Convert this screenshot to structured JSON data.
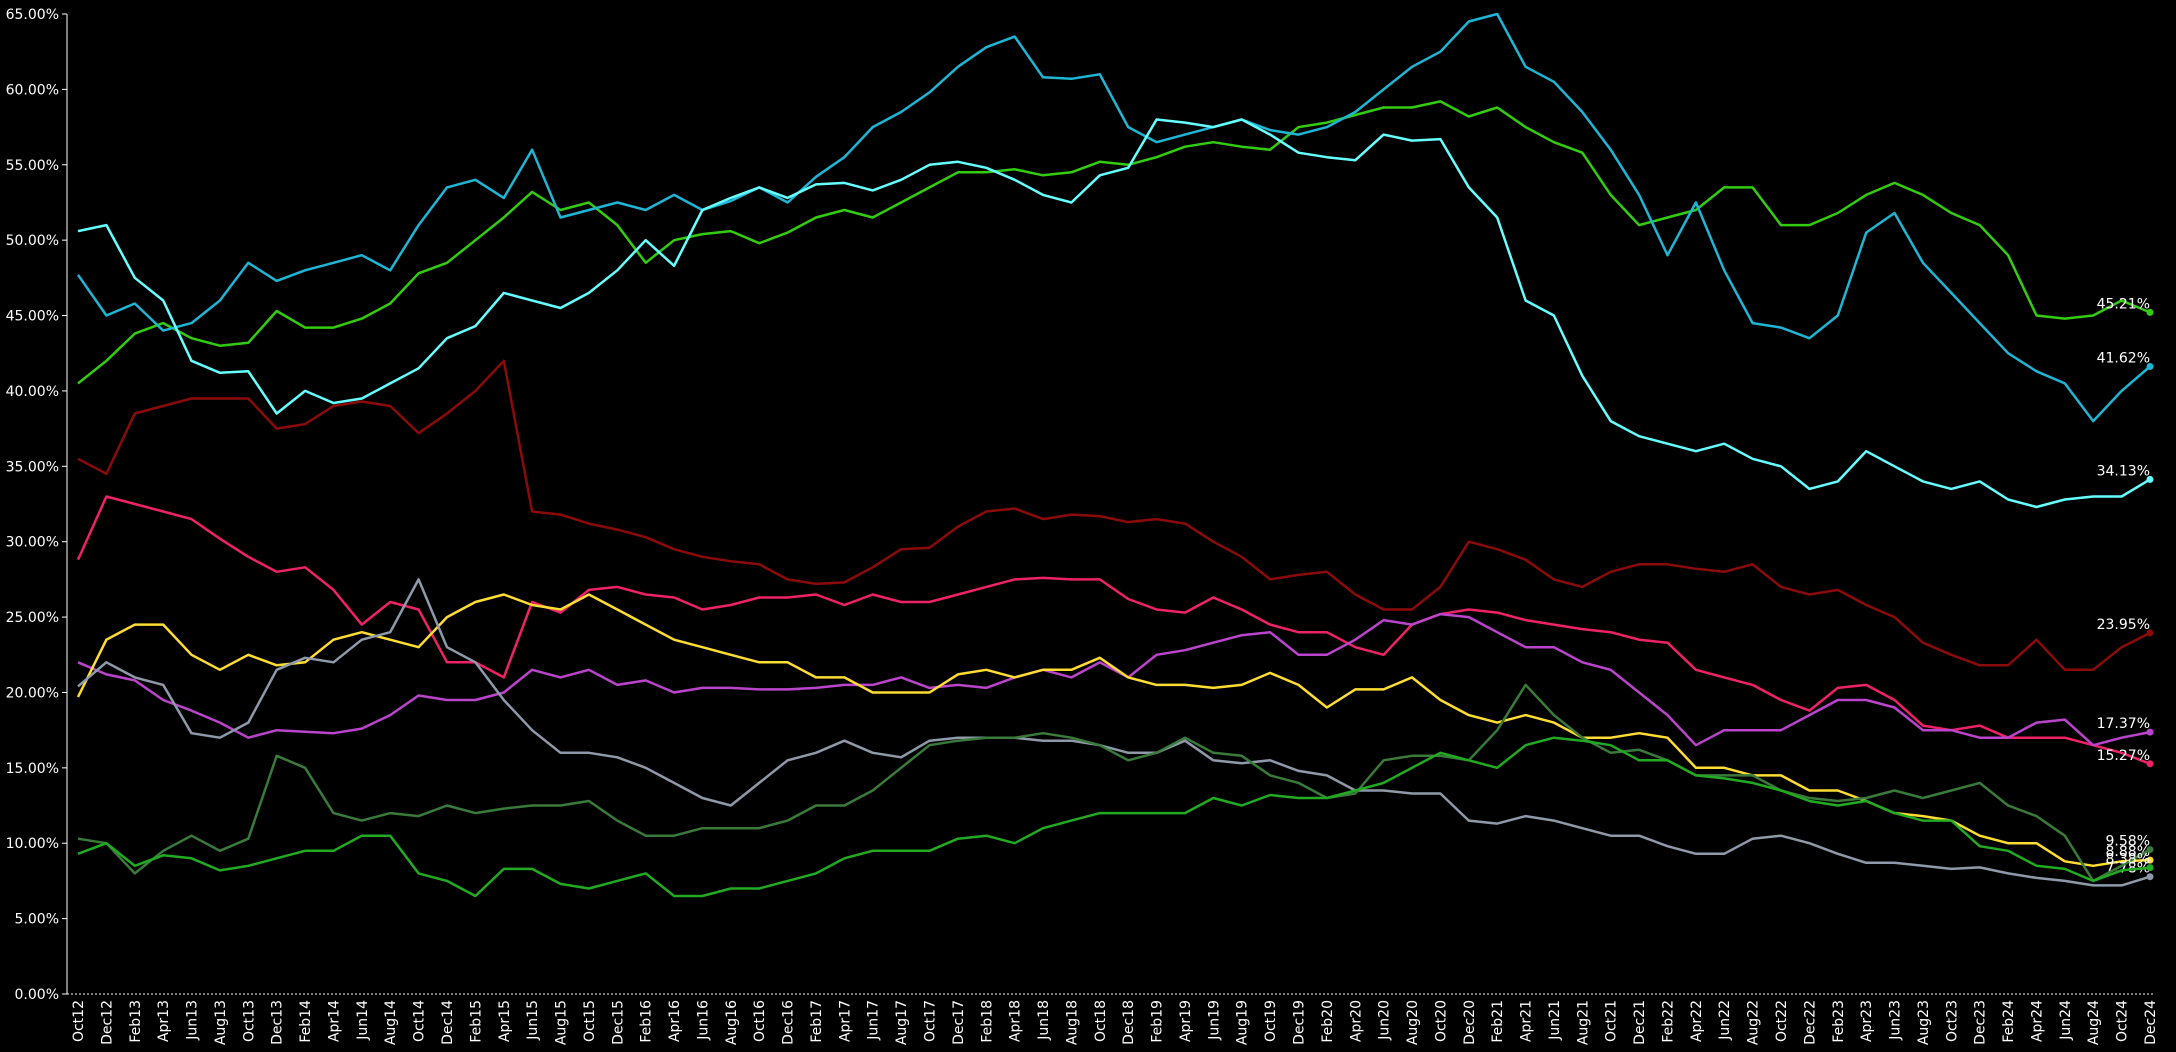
{
  "chart_data": {
    "type": "line",
    "categories": [
      "Oct12",
      "Dec12",
      "Feb13",
      "Apr13",
      "Jun13",
      "Aug13",
      "Oct13",
      "Dec13",
      "Feb14",
      "Apr14",
      "Jun14",
      "Aug14",
      "Oct14",
      "Dec14",
      "Feb15",
      "Apr15",
      "Jun15",
      "Aug15",
      "Oct15",
      "Dec15",
      "Feb16",
      "Apr16",
      "Jun16",
      "Aug16",
      "Oct16",
      "Dec16",
      "Feb17",
      "Apr17",
      "Jun17",
      "Aug17",
      "Oct17",
      "Dec17",
      "Feb18",
      "Apr18",
      "Jun18",
      "Aug18",
      "Oct18",
      "Dec18",
      "Feb19",
      "Apr19",
      "Jun19",
      "Aug19",
      "Oct19",
      "Dec19",
      "Feb20",
      "Apr20",
      "Jun20",
      "Aug20",
      "Oct20",
      "Dec20",
      "Feb21",
      "Apr21",
      "Jun21",
      "Aug21",
      "Oct21",
      "Dec21",
      "Feb22",
      "Apr22",
      "Jun22",
      "Aug22",
      "Oct22",
      "Dec22",
      "Feb23",
      "Apr23",
      "Jun23",
      "Aug23",
      "Oct23",
      "Dec23",
      "Feb24",
      "Apr24",
      "Jun24",
      "Aug24",
      "Oct24",
      "Dec24"
    ],
    "ylim": [
      0,
      65
    ],
    "yticks": [
      {
        "value": 0,
        "label": "0.00%"
      },
      {
        "value": 5,
        "label": "5.00%"
      },
      {
        "value": 10,
        "label": "10.00%"
      },
      {
        "value": 15,
        "label": "15.00%"
      },
      {
        "value": 20,
        "label": "20.00%"
      },
      {
        "value": 25,
        "label": "25.00%"
      },
      {
        "value": 30,
        "label": "30.00%"
      },
      {
        "value": 35,
        "label": "35.00%"
      },
      {
        "value": 40,
        "label": "40.00%"
      },
      {
        "value": 45,
        "label": "45.00%"
      },
      {
        "value": 50,
        "label": "50.00%"
      },
      {
        "value": 55,
        "label": "55.00%"
      },
      {
        "value": 60,
        "label": "60.00%"
      },
      {
        "value": 65,
        "label": "65.00%"
      }
    ],
    "series": [
      {
        "color": "#33cc11",
        "end_label": "45.21%",
        "values": [
          40.5,
          42,
          43.8,
          44.5,
          43.5,
          43,
          43.2,
          45.3,
          44.2,
          44.2,
          44.8,
          45.8,
          47.8,
          48.5,
          50,
          51.5,
          53.2,
          52,
          52.5,
          51,
          48.5,
          50,
          50.4,
          50.6,
          49.8,
          50.5,
          51.5,
          52,
          51.5,
          52.5,
          53.5,
          54.5,
          54.5,
          54.7,
          54.3,
          54.5,
          55.2,
          55,
          55.5,
          56.2,
          56.5,
          56.2,
          56,
          57.5,
          57.8,
          58.3,
          58.8,
          58.8,
          59.2,
          58.2,
          58.8,
          57.5,
          56.5,
          55.8,
          53,
          51,
          51.5,
          52,
          53.5,
          53.5,
          51,
          51,
          51.8,
          53,
          53.8,
          53,
          51.8,
          51,
          49,
          45,
          44.8,
          45,
          46,
          45.21
        ]
      },
      {
        "color": "#1fb5d5",
        "end_label": "41.62%",
        "values": [
          47.7,
          45,
          45.8,
          44,
          44.5,
          46,
          48.5,
          47.3,
          48,
          48.5,
          49,
          48,
          51,
          53.5,
          54,
          52.8,
          56,
          51.5,
          52,
          52.5,
          52,
          53,
          52,
          52.6,
          53.5,
          52.5,
          54.2,
          55.5,
          57.5,
          58.5,
          59.8,
          61.5,
          62.8,
          63.5,
          60.8,
          60.7,
          61,
          57.5,
          56.5,
          57,
          57.5,
          58,
          57.3,
          57,
          57.5,
          58.5,
          60,
          61.5,
          62.5,
          64.5,
          65,
          61.5,
          60.5,
          58.5,
          56,
          53,
          49,
          52.5,
          48,
          44.5,
          44.2,
          43.5,
          45,
          50.5,
          51.8,
          48.5,
          46.5,
          44.5,
          42.5,
          41.3,
          40.5,
          38,
          40,
          41.62
        ]
      },
      {
        "color": "#66ffff",
        "end_label": "34.13%",
        "values": [
          50.6,
          51,
          47.5,
          46,
          42,
          41.2,
          41.3,
          38.5,
          40,
          39.2,
          39.5,
          40.5,
          41.5,
          43.5,
          44.3,
          46.5,
          46,
          45.5,
          46.5,
          48,
          50,
          48.3,
          52,
          52.8,
          53.5,
          52.8,
          53.7,
          53.8,
          53.3,
          54,
          55,
          55.2,
          54.8,
          54,
          53,
          52.5,
          54.3,
          54.8,
          58,
          57.8,
          57.5,
          58,
          57,
          55.8,
          55.5,
          55.3,
          57,
          56.6,
          56.7,
          53.5,
          51.5,
          46,
          45,
          41,
          38,
          37,
          36.5,
          36,
          36.5,
          35.5,
          35,
          33.5,
          34,
          36,
          35,
          34,
          33.5,
          34,
          32.8,
          32.3,
          32.8,
          33,
          33,
          34.13
        ]
      },
      {
        "color": "#8b0a0a",
        "end_label": "23.95%",
        "values": [
          35.5,
          34.5,
          38.5,
          39,
          39.5,
          39.5,
          39.5,
          37.5,
          37.8,
          39,
          39.3,
          39,
          37.2,
          38.5,
          40,
          42,
          32,
          31.8,
          31.2,
          30.8,
          30.3,
          29.5,
          29,
          28.7,
          28.5,
          27.5,
          27.2,
          27.3,
          28.3,
          29.5,
          29.6,
          31,
          32,
          32.2,
          31.5,
          31.8,
          31.7,
          31.3,
          31.5,
          31.2,
          30,
          29,
          27.5,
          27.8,
          28,
          26.5,
          25.5,
          25.5,
          27,
          30,
          29.5,
          28.8,
          27.5,
          27,
          28,
          28.5,
          28.5,
          28.2,
          28,
          28.5,
          27,
          26.5,
          26.8,
          25.8,
          25,
          23.3,
          22.5,
          21.8,
          21.8,
          23.5,
          21.5,
          21.5,
          23,
          23.95
        ]
      },
      {
        "color": "#ee2266",
        "end_label": "15.27%",
        "values": [
          28.8,
          33,
          32.5,
          32,
          31.5,
          30.2,
          29,
          28,
          28.3,
          26.8,
          24.5,
          26,
          25.5,
          22,
          22,
          21,
          26,
          25.3,
          26.8,
          27,
          26.5,
          26.3,
          25.5,
          25.8,
          26.3,
          26.3,
          26.5,
          25.8,
          26.5,
          26,
          26,
          26.5,
          27,
          27.5,
          27.6,
          27.5,
          27.5,
          26.2,
          25.5,
          25.3,
          26.3,
          25.5,
          24.5,
          24,
          24,
          23,
          22.5,
          24.5,
          25.2,
          25.5,
          25.3,
          24.8,
          24.5,
          24.2,
          24,
          23.5,
          23.3,
          21.5,
          21,
          20.5,
          19.5,
          18.8,
          20.3,
          20.5,
          19.5,
          17.8,
          17.5,
          17.8,
          17,
          17,
          17,
          16.5,
          16,
          15.27
        ]
      },
      {
        "color": "#bb44cc",
        "end_label": "17.37%",
        "values": [
          22,
          21.2,
          20.8,
          19.5,
          18.8,
          18,
          17,
          17.5,
          17.4,
          17.3,
          17.6,
          18.5,
          19.8,
          19.5,
          19.5,
          20,
          21.5,
          21,
          21.5,
          20.5,
          20.8,
          20,
          20.3,
          20.3,
          20.2,
          20.2,
          20.3,
          20.5,
          20.5,
          21,
          20.3,
          20.5,
          20.3,
          21,
          21.5,
          21,
          22,
          21,
          22.5,
          22.8,
          23.3,
          23.8,
          24,
          22.5,
          22.5,
          23.5,
          24.8,
          24.5,
          25.2,
          25,
          24,
          23,
          23,
          22,
          21.5,
          20,
          18.5,
          16.5,
          17.5,
          17.5,
          17.5,
          18.5,
          19.5,
          19.5,
          19,
          17.5,
          17.5,
          17,
          17,
          18,
          18.2,
          16.5,
          17,
          17.37
        ]
      },
      {
        "color": "#ffdd33",
        "end_label": "8.88%",
        "values": [
          19.7,
          23.5,
          24.5,
          24.5,
          22.5,
          21.5,
          22.5,
          21.8,
          22,
          23.5,
          24,
          23.5,
          23,
          25,
          26,
          26.5,
          25.8,
          25.5,
          26.5,
          25.5,
          24.5,
          23.5,
          23,
          22.5,
          22,
          22,
          21,
          21,
          20,
          20,
          20,
          21.2,
          21.5,
          21,
          21.5,
          21.5,
          22.3,
          21,
          20.5,
          20.5,
          20.3,
          20.5,
          21.3,
          20.5,
          19,
          20.2,
          20.2,
          21,
          19.5,
          18.5,
          18,
          18.5,
          18,
          17,
          17,
          17.3,
          17,
          15,
          15,
          14.5,
          14.5,
          13.5,
          13.5,
          12.8,
          12,
          11.8,
          11.5,
          10.5,
          10,
          10,
          8.8,
          8.5,
          8.8,
          8.88
        ]
      },
      {
        "color": "#8e9aaa",
        "end_label": "7.78%",
        "values": [
          20.4,
          22,
          21,
          20.5,
          17.3,
          17,
          18,
          21.5,
          22.3,
          22,
          23.5,
          24,
          27.5,
          23,
          22,
          19.5,
          17.5,
          16,
          16,
          15.7,
          15,
          14,
          13,
          12.5,
          14,
          15.5,
          16,
          16.8,
          16,
          15.7,
          16.8,
          17,
          17,
          17,
          16.8,
          16.8,
          16.5,
          16,
          16,
          16.8,
          15.5,
          15.3,
          15.5,
          14.8,
          14.5,
          13.5,
          13.5,
          13.3,
          13.3,
          11.5,
          11.3,
          11.8,
          11.5,
          11,
          10.5,
          10.5,
          9.8,
          9.3,
          9.3,
          10.3,
          10.5,
          10,
          9.3,
          8.7,
          8.7,
          8.5,
          8.3,
          8.4,
          8,
          7.7,
          7.5,
          7.2,
          7.2,
          7.78
        ]
      },
      {
        "color": "#3a7a3a",
        "end_label": "9.58%",
        "values": [
          10.3,
          10,
          8,
          9.5,
          10.5,
          9.5,
          10.3,
          15.8,
          15,
          12,
          11.5,
          12,
          11.8,
          12.5,
          12,
          12.3,
          12.5,
          12.5,
          12.8,
          11.5,
          10.5,
          10.5,
          11,
          11,
          11,
          11.5,
          12.5,
          12.5,
          13.5,
          15,
          16.5,
          16.8,
          17,
          17,
          17.3,
          17,
          16.5,
          15.5,
          16,
          17,
          16,
          15.8,
          14.5,
          14,
          13,
          13.3,
          15.5,
          15.8,
          15.8,
          15.5,
          17.5,
          20.5,
          18.5,
          17,
          16,
          16.2,
          15.5,
          14.5,
          14.5,
          14.5,
          13.5,
          13,
          12.8,
          13,
          13.5,
          13,
          13.5,
          14,
          12.5,
          11.8,
          10.5,
          7.5,
          8.5,
          9.58
        ]
      },
      {
        "color": "#22aa22",
        "end_label": "8.38%",
        "values": [
          9.3,
          10,
          8.5,
          9.2,
          9,
          8.2,
          8.5,
          9,
          9.5,
          9.5,
          10.5,
          10.5,
          8,
          7.5,
          6.5,
          8.3,
          8.3,
          7.3,
          7,
          7.5,
          8,
          6.5,
          6.5,
          7,
          7,
          7.5,
          8,
          9,
          9.5,
          9.5,
          9.5,
          10.3,
          10.5,
          10,
          11,
          11.5,
          12,
          12,
          12,
          12,
          13,
          12.5,
          13.2,
          13,
          13,
          13.5,
          14,
          15,
          16,
          15.5,
          15,
          16.5,
          17,
          16.8,
          16.5,
          15.5,
          15.5,
          14.5,
          14.3,
          14,
          13.5,
          12.8,
          12.5,
          12.8,
          12,
          11.5,
          11.5,
          9.8,
          9.5,
          8.5,
          8.3,
          7.5,
          8.2,
          8.38
        ]
      }
    ]
  }
}
